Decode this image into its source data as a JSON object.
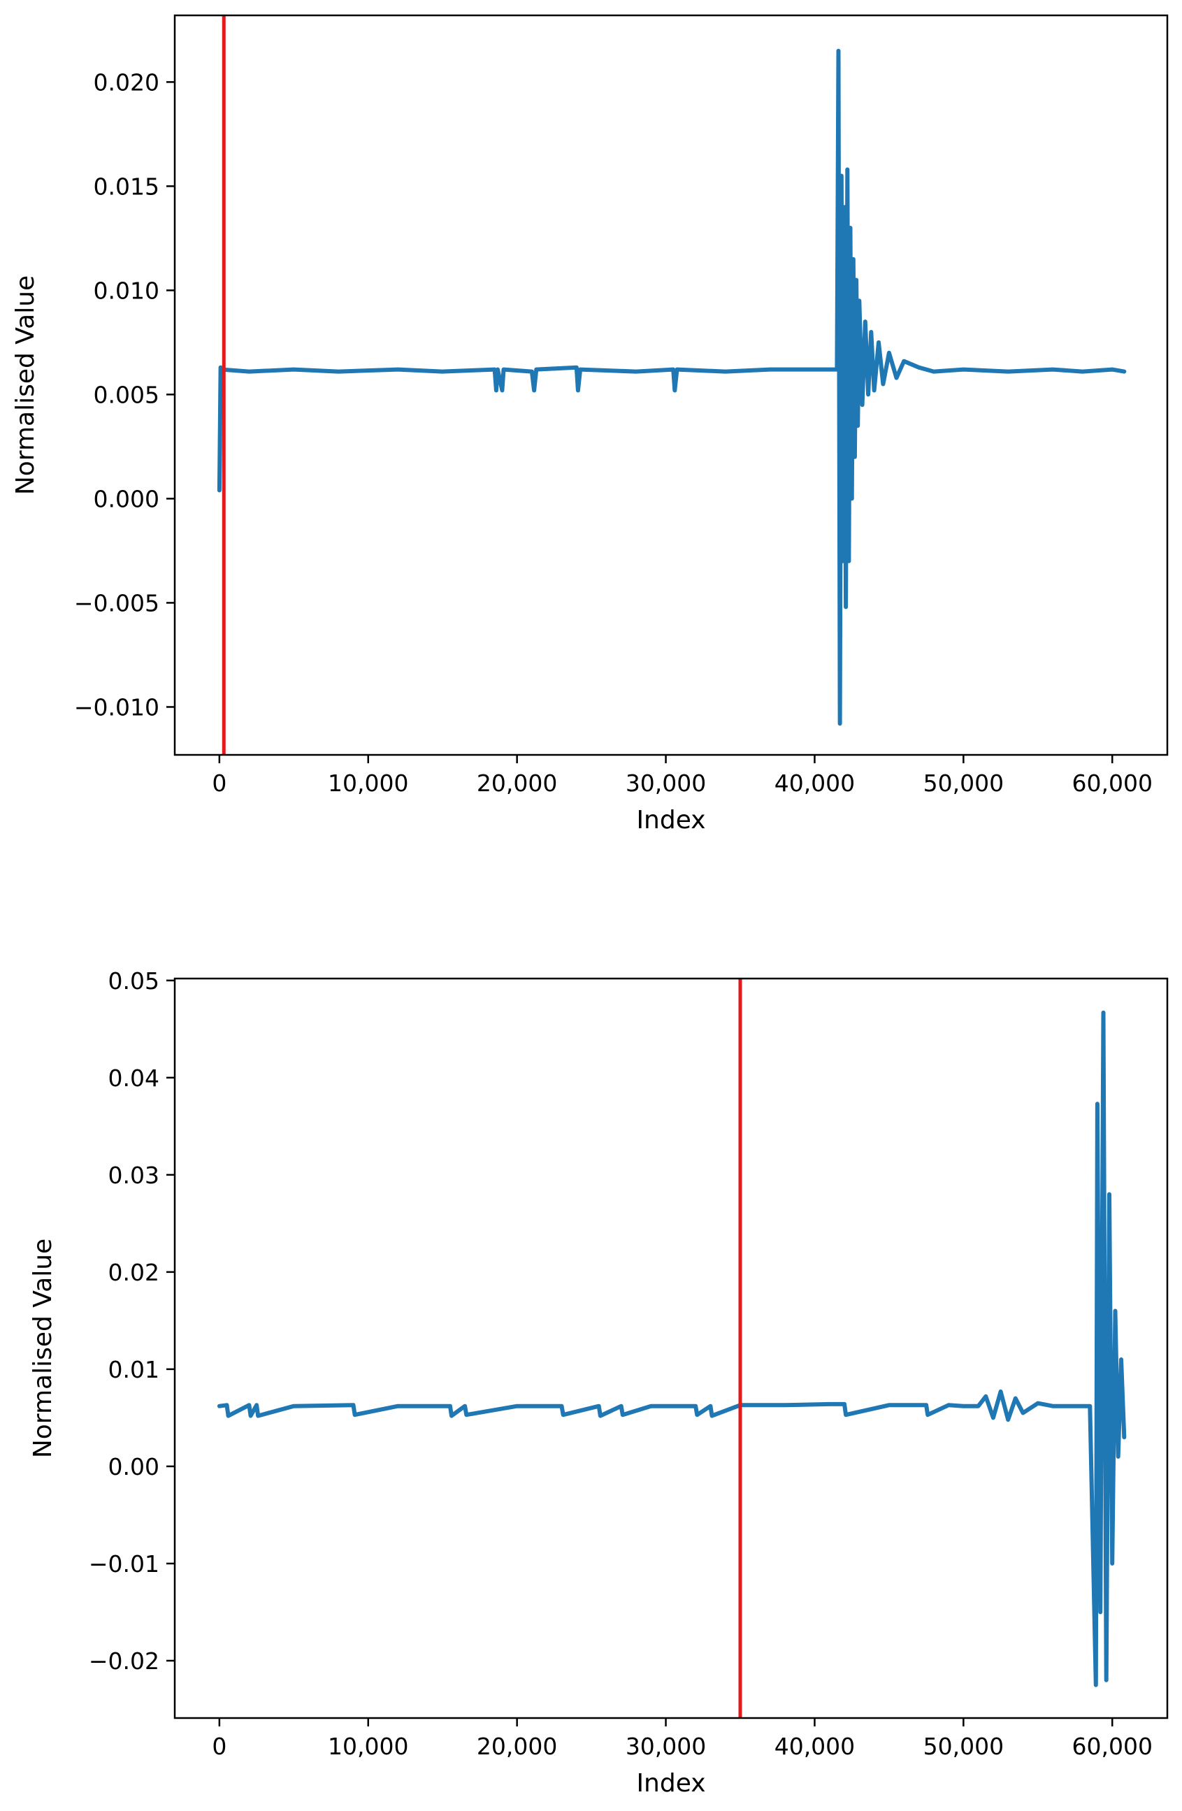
{
  "chart_data": [
    {
      "type": "line",
      "title": "",
      "xlabel": "Index",
      "ylabel": "Normalised Value",
      "xlim": [
        -3000,
        63700
      ],
      "ylim": [
        -0.0123,
        0.0232
      ],
      "xticks": [
        0,
        10000,
        20000,
        30000,
        40000,
        50000,
        60000
      ],
      "xtick_labels": [
        "0",
        "10,000",
        "20,000",
        "30,000",
        "40,000",
        "50,000",
        "60,000"
      ],
      "yticks": [
        -0.01,
        -0.005,
        0.0,
        0.005,
        0.01,
        0.015,
        0.02
      ],
      "ytick_labels": [
        "−0.010",
        "−0.005",
        "0.000",
        "0.005",
        "0.010",
        "0.015",
        "0.020"
      ],
      "grid": false,
      "vline": {
        "x": 300,
        "color": "#e31a1c"
      },
      "series": [
        {
          "color": "#1f77b4",
          "x": [
            0,
            80,
            150,
            2000,
            5000,
            8000,
            12000,
            15000,
            18500,
            18600,
            18700,
            19000,
            19100,
            21000,
            21150,
            21300,
            24000,
            24100,
            24250,
            28000,
            30500,
            30600,
            30750,
            34000,
            37000,
            40000,
            41500,
            41600,
            41700,
            41800,
            41900,
            42000,
            42100,
            42200,
            42300,
            42400,
            42500,
            42600,
            42700,
            42800,
            42900,
            43000,
            43200,
            43400,
            43600,
            43800,
            44000,
            44300,
            44600,
            45000,
            45500,
            46000,
            47000,
            48000,
            50000,
            53000,
            56000,
            58000,
            60000,
            60800
          ],
          "y": [
            0.0004,
            0.0063,
            0.0062,
            0.0061,
            0.0062,
            0.0061,
            0.0062,
            0.0061,
            0.0062,
            0.0052,
            0.0062,
            0.0052,
            0.0062,
            0.0061,
            0.0052,
            0.0062,
            0.0063,
            0.0052,
            0.0062,
            0.0061,
            0.0062,
            0.0052,
            0.0062,
            0.0061,
            0.0062,
            0.0062,
            0.0062,
            0.0215,
            -0.0108,
            0.0155,
            -0.003,
            0.014,
            -0.0052,
            0.0158,
            -0.003,
            0.013,
            0.0,
            0.0115,
            0.002,
            0.0105,
            0.0035,
            0.0095,
            0.0045,
            0.0085,
            0.005,
            0.008,
            0.0052,
            0.0075,
            0.0055,
            0.007,
            0.0058,
            0.0066,
            0.0063,
            0.0061,
            0.0062,
            0.0061,
            0.0062,
            0.0061,
            0.0062,
            0.0061
          ]
        }
      ]
    },
    {
      "type": "line",
      "title": "",
      "xlabel": "Index",
      "ylabel": "Normalised Value",
      "xlim": [
        -3000,
        63700
      ],
      "ylim": [
        -0.0259,
        0.0502
      ],
      "xticks": [
        0,
        10000,
        20000,
        30000,
        40000,
        50000,
        60000
      ],
      "xtick_labels": [
        "0",
        "10,000",
        "20,000",
        "30,000",
        "40,000",
        "50,000",
        "60,000"
      ],
      "yticks": [
        -0.02,
        -0.01,
        0.0,
        0.01,
        0.02,
        0.03,
        0.04,
        0.05
      ],
      "ytick_labels": [
        "−0.02",
        "−0.01",
        "0.00",
        "0.01",
        "0.02",
        "0.03",
        "0.04",
        "0.05"
      ],
      "grid": false,
      "vline": {
        "x": 35000,
        "color": "#e31a1c"
      },
      "series": [
        {
          "color": "#1f77b4",
          "x": [
            0,
            500,
            600,
            2000,
            2100,
            2500,
            2600,
            5000,
            9000,
            9100,
            12000,
            15500,
            15600,
            16500,
            16600,
            20000,
            23000,
            23100,
            25500,
            25600,
            27000,
            27100,
            29000,
            32000,
            32100,
            33000,
            33100,
            35000,
            38000,
            41000,
            42000,
            42100,
            45000,
            47500,
            47600,
            49000,
            50000,
            51000,
            51500,
            52000,
            52500,
            53000,
            53500,
            54000,
            55000,
            56000,
            57000,
            58500,
            58900,
            59000,
            59200,
            59400,
            59600,
            59800,
            60000,
            60200,
            60400,
            60600,
            60800
          ],
          "y": [
            0.0062,
            0.0063,
            0.0052,
            0.0063,
            0.0052,
            0.0063,
            0.0052,
            0.0062,
            0.0063,
            0.0053,
            0.0062,
            0.0062,
            0.0052,
            0.0062,
            0.0053,
            0.0062,
            0.0062,
            0.0053,
            0.0062,
            0.0052,
            0.0062,
            0.0053,
            0.0062,
            0.0062,
            0.0053,
            0.0062,
            0.0052,
            0.0063,
            0.0063,
            0.0064,
            0.0064,
            0.0053,
            0.0063,
            0.0063,
            0.0053,
            0.0063,
            0.0062,
            0.0062,
            0.0072,
            0.005,
            0.0077,
            0.0048,
            0.007,
            0.0055,
            0.0065,
            0.0062,
            0.0062,
            0.0062,
            -0.0225,
            0.0373,
            -0.015,
            0.0467,
            -0.022,
            0.028,
            -0.01,
            0.016,
            0.001,
            0.011,
            0.003
          ]
        }
      ]
    }
  ]
}
